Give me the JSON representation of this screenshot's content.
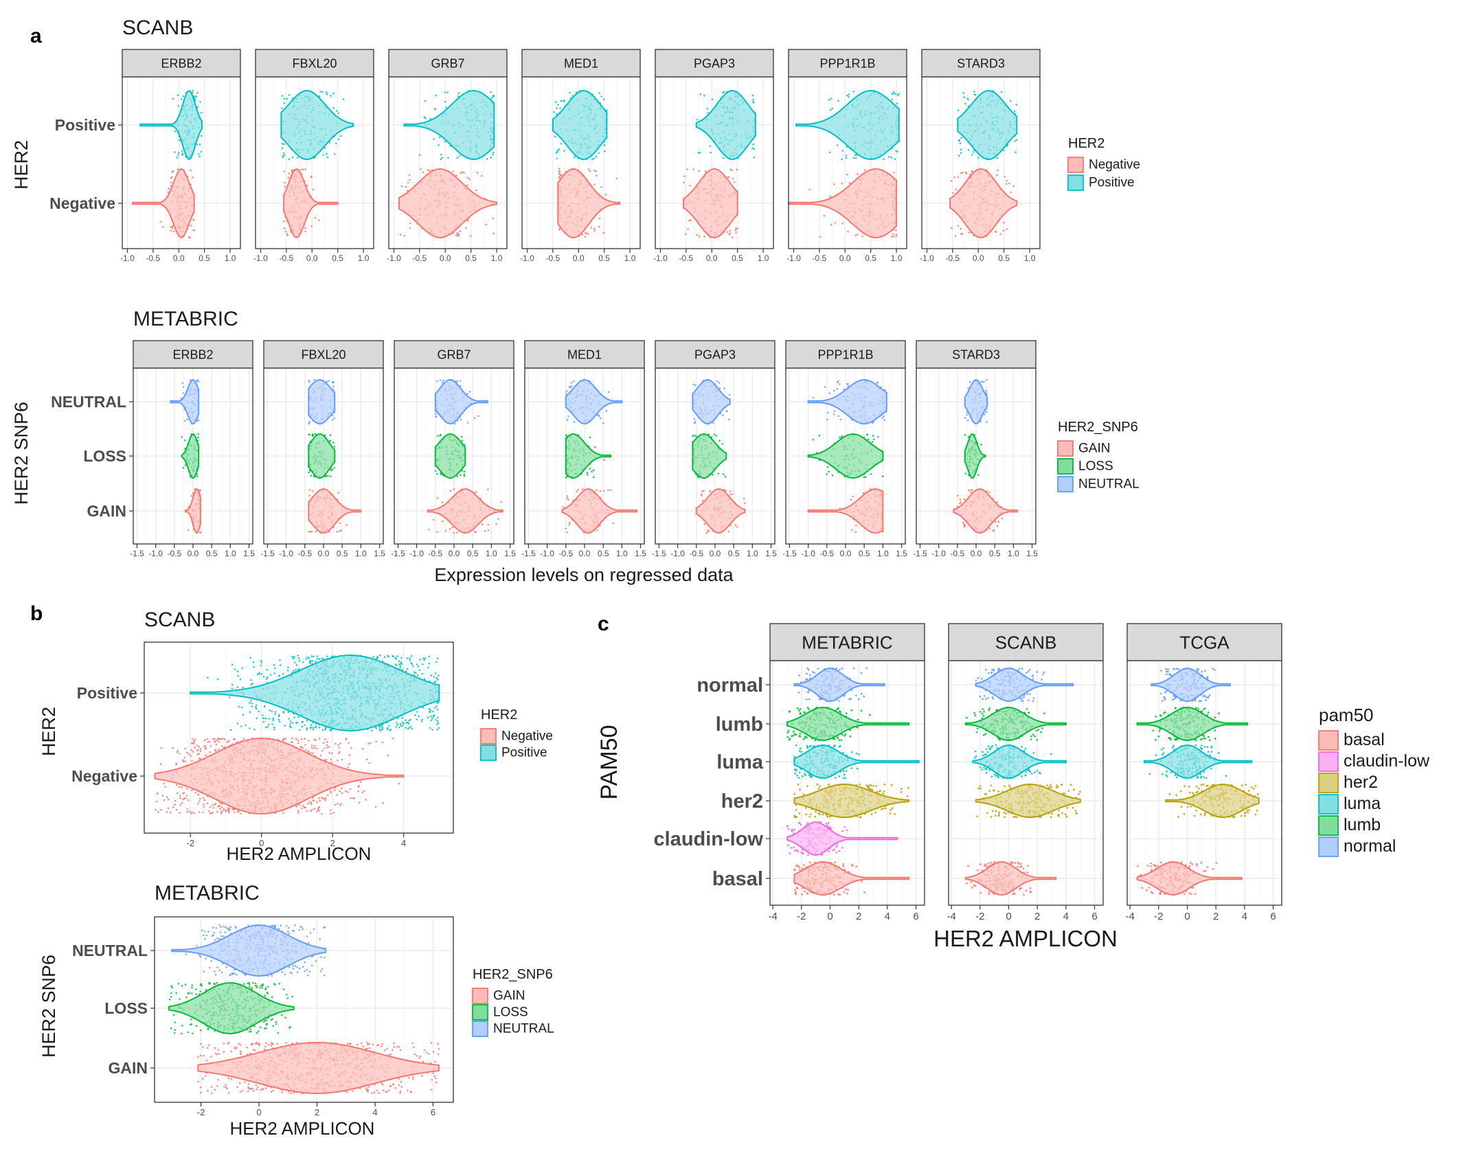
{
  "panels": {
    "a": "a",
    "b": "b",
    "c": "c"
  },
  "colors": {
    "Negative": "#F8766D",
    "Positive": "#00BFC4",
    "GAIN": "#F8766D",
    "LOSS": "#00BA38",
    "NEUTRAL": "#619CFF",
    "basal": "#F8766D",
    "claudin-low": "#F564E3",
    "her2": "#B79F00",
    "luma": "#00BFC4",
    "lumb": "#00BA38",
    "normal": "#619CFF"
  },
  "chart_data": [
    {
      "id": "a-scanb",
      "type": "violin",
      "title": "SCANB",
      "ylabel": "HER2",
      "xlabel": "",
      "facets": [
        "ERBB2",
        "FBXL20",
        "GRB7",
        "MED1",
        "PGAP3",
        "PPP1R1B",
        "STARD3"
      ],
      "categories": [
        "Negative",
        "Positive"
      ],
      "xlim": [
        -1.1,
        1.2
      ],
      "xticks": [
        -1.0,
        -0.5,
        0.0,
        0.5,
        1.0
      ],
      "xtick_labels": [
        "-1.0",
        "-0.5",
        "0.0",
        "0.5",
        "1.0"
      ],
      "legend": {
        "title": "HER2",
        "entries": [
          "Negative",
          "Positive"
        ],
        "position": "right"
      },
      "series": [
        {
          "facet": "ERBB2",
          "values": {
            "Positive": [
              0.2,
              0.12,
              -0.75,
              0.45
            ],
            "Negative": [
              0.05,
              0.15,
              -0.9,
              0.3
            ]
          }
        },
        {
          "facet": "FBXL20",
          "values": {
            "Positive": [
              -0.1,
              0.35,
              -0.6,
              0.8
            ],
            "Negative": [
              -0.3,
              0.15,
              -0.55,
              0.5
            ]
          }
        },
        {
          "facet": "GRB7",
          "values": {
            "Positive": [
              0.55,
              0.42,
              -0.8,
              0.95
            ],
            "Negative": [
              -0.1,
              0.42,
              -0.9,
              1.0
            ]
          }
        },
        {
          "facet": "MED1",
          "values": {
            "Positive": [
              0.1,
              0.32,
              -0.5,
              0.55
            ],
            "Negative": [
              -0.1,
              0.3,
              -0.4,
              0.8
            ]
          }
        },
        {
          "facet": "PGAP3",
          "values": {
            "Positive": [
              0.4,
              0.3,
              -0.3,
              0.85
            ],
            "Negative": [
              0.05,
              0.3,
              -0.55,
              0.5
            ]
          }
        },
        {
          "facet": "PPP1R1B",
          "values": {
            "Positive": [
              0.5,
              0.45,
              -0.95,
              1.05
            ],
            "Negative": [
              0.6,
              0.45,
              -1.1,
              1.0
            ]
          }
        },
        {
          "facet": "STARD3",
          "values": {
            "Positive": [
              0.2,
              0.33,
              -0.4,
              0.75
            ],
            "Negative": [
              0.05,
              0.3,
              -0.55,
              0.75
            ]
          }
        }
      ]
    },
    {
      "id": "a-metabric",
      "type": "violin",
      "title": "METABRIC",
      "ylabel": "HER2 SNP6",
      "xlabel": "Expression levels on regressed data",
      "facets": [
        "ERBB2",
        "FBXL20",
        "GRB7",
        "MED1",
        "PGAP3",
        "PPP1R1B",
        "STARD3"
      ],
      "categories": [
        "GAIN",
        "LOSS",
        "NEUTRAL"
      ],
      "xlim": [
        -1.6,
        1.6
      ],
      "xticks": [
        -1.5,
        -1.0,
        -0.5,
        0.0,
        0.5,
        1.0,
        1.5
      ],
      "xtick_labels": [
        "-1.5",
        "-1.0",
        "-0.5",
        "0.0",
        "0.5",
        "1.0",
        "1.5"
      ],
      "legend": {
        "title": "HER2_SNP6",
        "entries": [
          "GAIN",
          "LOSS",
          "NEUTRAL"
        ],
        "position": "right"
      },
      "series": [
        {
          "facet": "ERBB2",
          "values": {
            "NEUTRAL": [
              0.0,
              0.14,
              -0.6,
              0.15
            ],
            "LOSS": [
              0.0,
              0.12,
              -0.3,
              0.15
            ],
            "GAIN": [
              0.1,
              0.1,
              -0.2,
              0.2
            ]
          }
        },
        {
          "facet": "FBXL20",
          "values": {
            "NEUTRAL": [
              -0.1,
              0.3,
              -0.4,
              0.3
            ],
            "LOSS": [
              -0.1,
              0.25,
              -0.4,
              0.3
            ],
            "GAIN": [
              0.0,
              0.3,
              -0.4,
              1.0
            ]
          }
        },
        {
          "facet": "GRB7",
          "values": {
            "NEUTRAL": [
              -0.1,
              0.28,
              -0.5,
              0.9
            ],
            "LOSS": [
              -0.1,
              0.3,
              -0.5,
              0.3
            ],
            "GAIN": [
              0.3,
              0.35,
              -0.7,
              1.3
            ]
          }
        },
        {
          "facet": "MED1",
          "values": {
            "NEUTRAL": [
              0.0,
              0.3,
              -0.5,
              1.0
            ],
            "LOSS": [
              -0.3,
              0.3,
              -0.5,
              0.7
            ],
            "GAIN": [
              0.1,
              0.3,
              -0.6,
              1.4
            ]
          }
        },
        {
          "facet": "PGAP3",
          "values": {
            "NEUTRAL": [
              -0.2,
              0.28,
              -0.6,
              0.4
            ],
            "LOSS": [
              -0.3,
              0.3,
              -0.6,
              0.3
            ],
            "GAIN": [
              0.1,
              0.3,
              -0.5,
              0.8
            ]
          }
        },
        {
          "facet": "PPP1R1B",
          "values": {
            "NEUTRAL": [
              0.5,
              0.45,
              -1.0,
              1.1
            ],
            "LOSS": [
              0.2,
              0.45,
              -1.0,
              1.0
            ],
            "GAIN": [
              0.8,
              0.4,
              -1.0,
              1.0
            ]
          }
        },
        {
          "facet": "STARD3",
          "values": {
            "NEUTRAL": [
              0.0,
              0.17,
              -0.3,
              0.3
            ],
            "LOSS": [
              -0.1,
              0.12,
              -0.3,
              0.25
            ],
            "GAIN": [
              0.1,
              0.3,
              -0.6,
              1.1
            ]
          }
        }
      ]
    },
    {
      "id": "b-scanb",
      "type": "violin",
      "title": "SCANB",
      "ylabel": "HER2",
      "xlabel": "HER2 AMPLICON",
      "categories": [
        "Negative",
        "Positive"
      ],
      "xlim": [
        -3.3,
        5.4
      ],
      "xticks": [
        -2,
        0,
        2,
        4
      ],
      "xtick_labels": [
        "-2",
        "0",
        "2",
        "4"
      ],
      "legend": {
        "title": "HER2",
        "entries": [
          "Negative",
          "Positive"
        ],
        "position": "right"
      },
      "values": {
        "Positive": [
          2.5,
          1.4,
          -2.0,
          5.0
        ],
        "Negative": [
          0.0,
          1.3,
          -3.0,
          4.0
        ]
      }
    },
    {
      "id": "b-metabric",
      "type": "violin",
      "title": "METABRIC",
      "ylabel": "HER2 SNP6",
      "xlabel": "HER2 AMPLICON",
      "categories": [
        "GAIN",
        "LOSS",
        "NEUTRAL"
      ],
      "xlim": [
        -3.6,
        6.7
      ],
      "xticks": [
        -2,
        0,
        2,
        4,
        6
      ],
      "xtick_labels": [
        "-2",
        "0",
        "2",
        "4",
        "6"
      ],
      "legend": {
        "title": "HER2_SNP6",
        "entries": [
          "GAIN",
          "LOSS",
          "NEUTRAL"
        ],
        "position": "right"
      },
      "values": {
        "NEUTRAL": [
          0.0,
          1.0,
          -3.0,
          2.3
        ],
        "LOSS": [
          -1.0,
          0.9,
          -3.1,
          1.2
        ],
        "GAIN": [
          2.0,
          2.0,
          -2.1,
          6.2
        ]
      }
    },
    {
      "id": "c",
      "type": "violin",
      "title": "",
      "ylabel": "PAM50",
      "xlabel": "HER2 AMPLICON",
      "facets": [
        "METABRIC",
        "SCANB",
        "TCGA"
      ],
      "categories": [
        "basal",
        "claudin-low",
        "her2",
        "luma",
        "lumb",
        "normal"
      ],
      "xlim": [
        -4.2,
        6.6
      ],
      "xticks": [
        -4,
        -2,
        0,
        2,
        4,
        6
      ],
      "xtick_labels": [
        "-4",
        "-2",
        "0",
        "2",
        "4",
        "6"
      ],
      "legend": {
        "title": "pam50",
        "entries": [
          "basal",
          "claudin-low",
          "her2",
          "luma",
          "lumb",
          "normal"
        ],
        "position": "right"
      },
      "series": [
        {
          "facet": "METABRIC",
          "values": {
            "normal": [
              0.0,
              0.9,
              -2.5,
              3.8
            ],
            "lumb": [
              -0.5,
              1.2,
              -3.0,
              5.5
            ],
            "luma": [
              -0.5,
              1.1,
              -2.5,
              6.2
            ],
            "her2": [
              1.0,
              1.8,
              -2.5,
              5.5
            ],
            "claudin-low": [
              -1.0,
              0.9,
              -3.0,
              4.7
            ],
            "basal": [
              -0.5,
              1.2,
              -2.5,
              5.5
            ]
          }
        },
        {
          "facet": "SCANB",
          "values": {
            "normal": [
              0.0,
              1.0,
              -2.3,
              4.5
            ],
            "lumb": [
              0.0,
              1.1,
              -3.0,
              4.0
            ],
            "luma": [
              0.0,
              1.0,
              -2.5,
              4.0
            ],
            "her2": [
              1.5,
              1.6,
              -2.3,
              5.0
            ],
            "basal": [
              -0.5,
              1.0,
              -3.0,
              3.3
            ]
          }
        },
        {
          "facet": "TCGA",
          "values": {
            "normal": [
              0.0,
              0.9,
              -2.5,
              3.0
            ],
            "lumb": [
              0.0,
              1.1,
              -3.5,
              4.2
            ],
            "luma": [
              0.0,
              1.0,
              -3.0,
              4.5
            ],
            "her2": [
              2.5,
              1.3,
              -1.5,
              5.0
            ],
            "basal": [
              -1.0,
              1.1,
              -3.5,
              3.8
            ]
          }
        }
      ]
    }
  ]
}
